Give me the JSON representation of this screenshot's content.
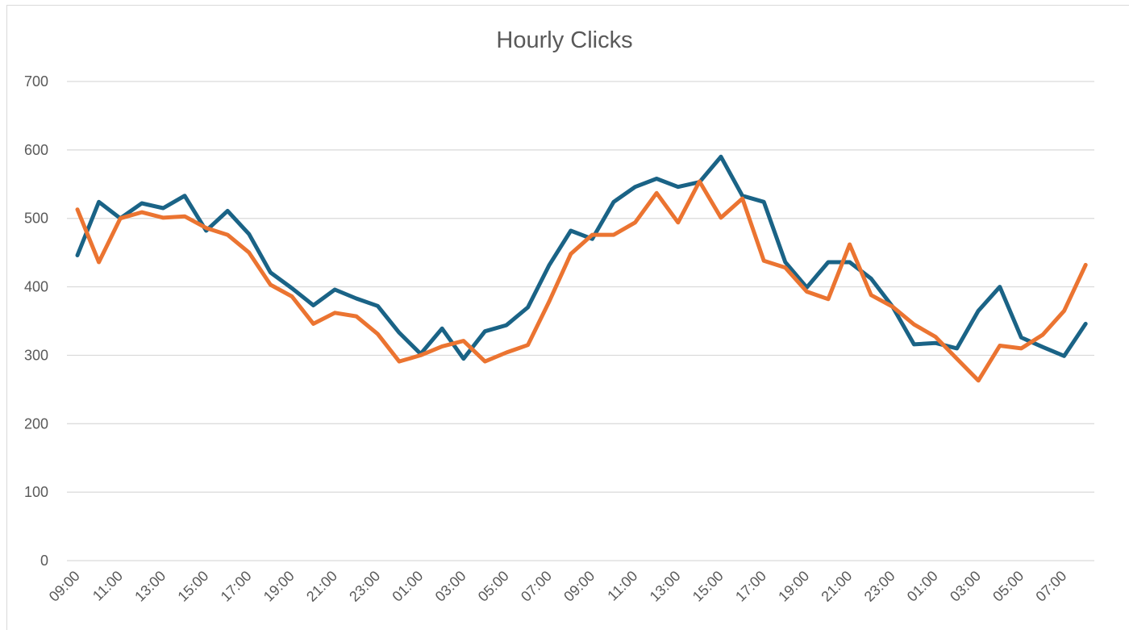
{
  "colors": {
    "series1": "#1a6386",
    "series2": "#eb7431"
  },
  "chart_data": {
    "type": "line",
    "title": "Hourly Clicks",
    "xlabel": "",
    "ylabel": "",
    "ylim": [
      0,
      700
    ],
    "yticks": [
      0,
      100,
      200,
      300,
      400,
      500,
      600,
      700
    ],
    "grid": true,
    "legend": "none",
    "categories": [
      "09:00",
      "10:00",
      "11:00",
      "12:00",
      "13:00",
      "14:00",
      "15:00",
      "16:00",
      "17:00",
      "18:00",
      "19:00",
      "20:00",
      "21:00",
      "22:00",
      "23:00",
      "00:00",
      "01:00",
      "02:00",
      "03:00",
      "04:00",
      "05:00",
      "06:00",
      "07:00",
      "08:00",
      "09:00",
      "10:00",
      "11:00",
      "12:00",
      "13:00",
      "14:00",
      "15:00",
      "16:00",
      "17:00",
      "18:00",
      "19:00",
      "20:00",
      "21:00",
      "22:00",
      "23:00",
      "00:00",
      "01:00",
      "02:00",
      "03:00",
      "04:00",
      "05:00",
      "06:00",
      "07:00",
      "08:00"
    ],
    "tick_labels": [
      "09:00",
      "11:00",
      "13:00",
      "15:00",
      "17:00",
      "19:00",
      "21:00",
      "23:00",
      "01:00",
      "03:00",
      "05:00",
      "07:00",
      "09:00",
      "11:00",
      "13:00",
      "15:00",
      "17:00",
      "19:00",
      "21:00",
      "23:00",
      "01:00",
      "03:00",
      "05:00",
      "07:00"
    ],
    "series": [
      {
        "values": [
          446,
          524,
          500,
          522,
          515,
          533,
          482,
          511,
          477,
          421,
          398,
          373,
          396,
          383,
          372,
          333,
          302,
          339,
          295,
          335,
          344,
          370,
          432,
          482,
          470,
          524,
          546,
          558,
          546,
          553,
          590,
          533,
          524,
          436,
          399,
          436,
          436,
          412,
          371,
          316,
          318,
          310,
          365,
          400,
          326,
          312,
          299,
          346
        ]
      },
      {
        "values": [
          513,
          436,
          500,
          509,
          501,
          503,
          486,
          476,
          450,
          403,
          386,
          346,
          362,
          357,
          331,
          291,
          300,
          313,
          321,
          291,
          304,
          315,
          379,
          448,
          476,
          476,
          494,
          537,
          494,
          554,
          501,
          529,
          438,
          428,
          393,
          382,
          462,
          388,
          371,
          345,
          327,
          295,
          263,
          314,
          310,
          330,
          365,
          432
        ]
      }
    ]
  }
}
